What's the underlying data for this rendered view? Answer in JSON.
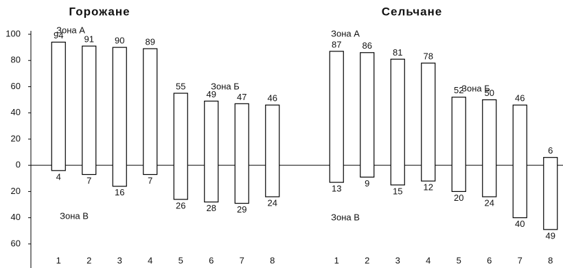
{
  "chart_data": [
    {
      "type": "bar",
      "title": "Горожане",
      "categories": [
        "1",
        "2",
        "3",
        "4",
        "5",
        "6",
        "7",
        "8"
      ],
      "series": [
        {
          "values": [
            94,
            91,
            90,
            89,
            55,
            49,
            47,
            46
          ]
        },
        {
          "values": [
            -4,
            -7,
            -16,
            -7,
            -26,
            -28,
            -29,
            -24
          ],
          "value_labels": [
            "4",
            "7",
            "16",
            "7",
            "26",
            "28",
            "29",
            "24"
          ]
        }
      ],
      "annotations": [
        "Зона А",
        "Зона Б",
        "Зона В"
      ],
      "ylim": [
        -70,
        100
      ],
      "yticks": [
        100,
        80,
        60,
        40,
        20,
        0,
        {
          "value": -20,
          "label": "20"
        },
        {
          "value": -40,
          "label": "40"
        },
        {
          "value": -60,
          "label": "60"
        }
      ]
    },
    {
      "type": "bar",
      "title": "Сельчане",
      "categories": [
        "1",
        "2",
        "3",
        "4",
        "5",
        "6",
        "7",
        "8"
      ],
      "series": [
        {
          "values": [
            87,
            86,
            81,
            78,
            52,
            50,
            46,
            6
          ]
        },
        {
          "values": [
            -13,
            -9,
            -15,
            -12,
            -20,
            -24,
            -40,
            -49
          ],
          "value_labels": [
            "13",
            "9",
            "15",
            "12",
            "20",
            "24",
            "40",
            "49"
          ]
        }
      ],
      "annotations": [
        "Зона А",
        "Зона Б",
        "Зона В"
      ],
      "ylim": [
        -70,
        100
      ]
    }
  ]
}
